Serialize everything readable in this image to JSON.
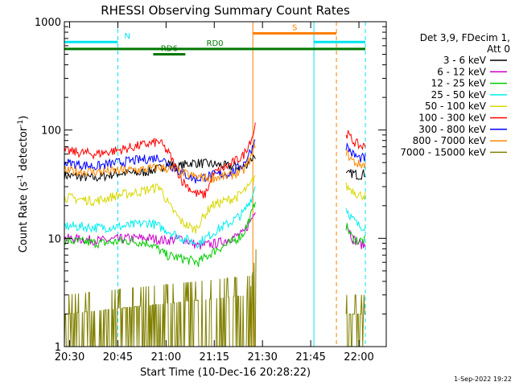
{
  "chart_data": {
    "type": "line",
    "title": "RHESSI Observing Summary Count Rates",
    "xlabel": "Start Time (10-Dec-16 20:28:22)",
    "ylabel_main": "Count Rate (s",
    "ylabel_sup1": "-1",
    "ylabel_mid": " detector",
    "ylabel_sup2": "-1",
    "ylabel_end": ")",
    "y_scale": "log",
    "ylim": [
      1,
      1000
    ],
    "xlim": [
      "20:28:22",
      "22:08:30"
    ],
    "x_ticks": [
      "20:30",
      "20:45",
      "21:00",
      "21:15",
      "21:30",
      "21:45",
      "22:00"
    ],
    "y_ticks": [
      "1",
      "10",
      "100",
      "1000"
    ],
    "legend_header": [
      "Det 3,9, FDecim 1,",
      "Att 0"
    ],
    "legend_position": "right",
    "footer_date": "1-Sep-2022 19:22",
    "series": [
      {
        "name": "3 - 6 keV",
        "color": "#000000",
        "segments": [
          [
            [
              "20:28:22",
              38
            ],
            [
              "20:38",
              36
            ],
            [
              "20:45",
              40
            ],
            [
              "20:52",
              40
            ],
            [
              "20:58",
              44
            ],
            [
              "21:01",
              50
            ],
            [
              "21:03",
              45
            ],
            [
              "21:08",
              50
            ],
            [
              "21:15",
              48
            ],
            [
              "21:20",
              46
            ],
            [
              "21:24",
              45
            ],
            [
              "21:26",
              52
            ],
            [
              "21:28",
              60
            ]
          ],
          [
            [
              "21:56",
              38
            ],
            [
              "21:58",
              40
            ],
            [
              "22:00",
              38
            ],
            [
              "22:02",
              40
            ]
          ]
        ]
      },
      {
        "name": "6 - 12 keV",
        "color": "#cc00cc",
        "segments": [
          [
            [
              "20:28:22",
              10
            ],
            [
              "20:40",
              9.5
            ],
            [
              "20:48",
              10
            ],
            [
              "20:55",
              10
            ],
            [
              "21:00",
              9.5
            ],
            [
              "21:05",
              10
            ],
            [
              "21:10",
              8.5
            ],
            [
              "21:16",
              9
            ],
            [
              "21:20",
              10
            ],
            [
              "21:24",
              11
            ],
            [
              "21:27",
              16
            ],
            [
              "21:28",
              20
            ]
          ],
          [
            [
              "21:56",
              14
            ],
            [
              "21:58",
              10
            ],
            [
              "22:00",
              9
            ],
            [
              "22:02",
              8.5
            ]
          ]
        ]
      },
      {
        "name": "12 - 25 keV",
        "color": "#00cc00",
        "segments": [
          [
            [
              "20:28:22",
              9.5
            ],
            [
              "20:40",
              9
            ],
            [
              "20:48",
              9.5
            ],
            [
              "20:55",
              9
            ],
            [
              "21:00",
              7
            ],
            [
              "21:05",
              6.5
            ],
            [
              "21:10",
              6
            ],
            [
              "21:16",
              8
            ],
            [
              "21:20",
              9
            ],
            [
              "21:24",
              11
            ],
            [
              "21:27",
              18
            ],
            [
              "21:28",
              25
            ]
          ],
          [
            [
              "21:56",
              13
            ],
            [
              "21:58",
              10
            ],
            [
              "22:00",
              9.5
            ],
            [
              "22:02",
              9.5
            ]
          ]
        ]
      },
      {
        "name": "25 - 50 keV",
        "color": "#00eeee",
        "segments": [
          [
            [
              "20:28:22",
              13
            ],
            [
              "20:40",
              12.5
            ],
            [
              "20:48",
              13
            ],
            [
              "20:55",
              14
            ],
            [
              "21:00",
              12
            ],
            [
              "21:05",
              10
            ],
            [
              "21:10",
              9
            ],
            [
              "21:16",
              12
            ],
            [
              "21:20",
              14
            ],
            [
              "21:24",
              17
            ],
            [
              "21:27",
              25
            ],
            [
              "21:28",
              35
            ]
          ],
          [
            [
              "21:56",
              19
            ],
            [
              "21:58",
              15
            ],
            [
              "22:00",
              13
            ],
            [
              "22:02",
              13
            ]
          ]
        ]
      },
      {
        "name": "50 - 100 keV",
        "color": "#d8d800",
        "segments": [
          [
            [
              "20:28:22",
              24
            ],
            [
              "20:38",
              22
            ],
            [
              "20:45",
              25
            ],
            [
              "20:52",
              27
            ],
            [
              "20:58",
              30
            ],
            [
              "21:01",
              20
            ],
            [
              "21:05",
              14
            ],
            [
              "21:09",
              12
            ],
            [
              "21:14",
              20
            ],
            [
              "21:18",
              22
            ],
            [
              "21:22",
              24
            ],
            [
              "21:26",
              30
            ],
            [
              "21:28",
              40
            ]
          ],
          [
            [
              "21:56",
              30
            ],
            [
              "21:58",
              28
            ],
            [
              "22:00",
              25
            ],
            [
              "22:02",
              25
            ]
          ]
        ]
      },
      {
        "name": "100 - 300 keV",
        "color": "#ff0000",
        "segments": [
          [
            [
              "20:28:22",
              64
            ],
            [
              "20:38",
              60
            ],
            [
              "20:45",
              65
            ],
            [
              "20:52",
              72
            ],
            [
              "20:58",
              78
            ],
            [
              "21:01",
              60
            ],
            [
              "21:05",
              34
            ],
            [
              "21:09",
              26
            ],
            [
              "21:12",
              25
            ],
            [
              "21:15",
              40
            ],
            [
              "21:20",
              48
            ],
            [
              "21:24",
              58
            ],
            [
              "21:27",
              90
            ],
            [
              "21:28",
              120
            ]
          ],
          [
            [
              "21:56",
              95
            ],
            [
              "21:58",
              80
            ],
            [
              "22:00",
              72
            ],
            [
              "22:02",
              70
            ]
          ]
        ]
      },
      {
        "name": "300 - 800 keV",
        "color": "#0000ff",
        "segments": [
          [
            [
              "20:28:22",
              50
            ],
            [
              "20:38",
              46
            ],
            [
              "20:45",
              50
            ],
            [
              "20:52",
              53
            ],
            [
              "20:58",
              56
            ],
            [
              "21:01",
              48
            ],
            [
              "21:05",
              40
            ],
            [
              "21:09",
              35
            ],
            [
              "21:14",
              38
            ],
            [
              "21:20",
              40
            ],
            [
              "21:24",
              48
            ],
            [
              "21:27",
              70
            ],
            [
              "21:28",
              90
            ]
          ],
          [
            [
              "21:56",
              72
            ],
            [
              "21:58",
              60
            ],
            [
              "22:00",
              55
            ],
            [
              "22:02",
              55
            ]
          ]
        ]
      },
      {
        "name": "800 - 7000 keV",
        "color": "#ff8800",
        "segments": [
          [
            [
              "20:28:22",
              42
            ],
            [
              "20:38",
              41
            ],
            [
              "20:45",
              42
            ],
            [
              "20:52",
              43
            ],
            [
              "20:58",
              45
            ],
            [
              "21:01",
              44
            ],
            [
              "21:05",
              40
            ],
            [
              "21:09",
              37
            ],
            [
              "21:14",
              36
            ],
            [
              "21:20",
              38
            ],
            [
              "21:24",
              42
            ],
            [
              "21:27",
              60
            ],
            [
              "21:28",
              80
            ]
          ],
          [
            [
              "21:56",
              62
            ],
            [
              "21:58",
              52
            ],
            [
              "22:00",
              48
            ],
            [
              "22:02",
              48
            ]
          ]
        ]
      },
      {
        "name": "7000 - 15000 keV",
        "color": "#808000",
        "segments": [
          [
            [
              "20:28:22",
              1
            ],
            [
              "21:26",
              1.5
            ],
            [
              "21:27",
              2.5
            ],
            [
              "21:28",
              4
            ]
          ],
          [
            [
              "21:56",
              1
            ],
            [
              "22:02",
              1
            ]
          ]
        ]
      }
    ],
    "annotations": {
      "N": {
        "label": "N",
        "color": "#00e5ee",
        "start": "20:28:22",
        "end": "20:45",
        "y": 650
      },
      "N2": {
        "label": "",
        "color": "#00e5ee",
        "start": "21:46",
        "end": "22:02",
        "y": 650
      },
      "S": {
        "label": "S",
        "color": "#ff7f00",
        "start": "21:27",
        "end": "21:53",
        "y": 780
      },
      "RD0": {
        "label": "RD0",
        "color": "#007700",
        "start": "20:28:22",
        "end": "22:02",
        "y": 560
      },
      "RD6": {
        "label": "RD6",
        "color": "#007700",
        "start": "20:56",
        "end": "21:06",
        "y": 500
      }
    },
    "vlines": [
      {
        "x": "20:28:22",
        "color": "#00e5ee",
        "style": "solid"
      },
      {
        "x": "20:45",
        "color": "#00e5ee",
        "style": "dashed"
      },
      {
        "x": "21:27",
        "color": "#ff7f00",
        "style": "solid"
      },
      {
        "x": "21:46",
        "color": "#00e5ee",
        "style": "solid"
      },
      {
        "x": "21:53",
        "color": "#ff7f00",
        "style": "dashed"
      },
      {
        "x": "22:02",
        "color": "#00e5ee",
        "style": "dashed"
      }
    ]
  }
}
